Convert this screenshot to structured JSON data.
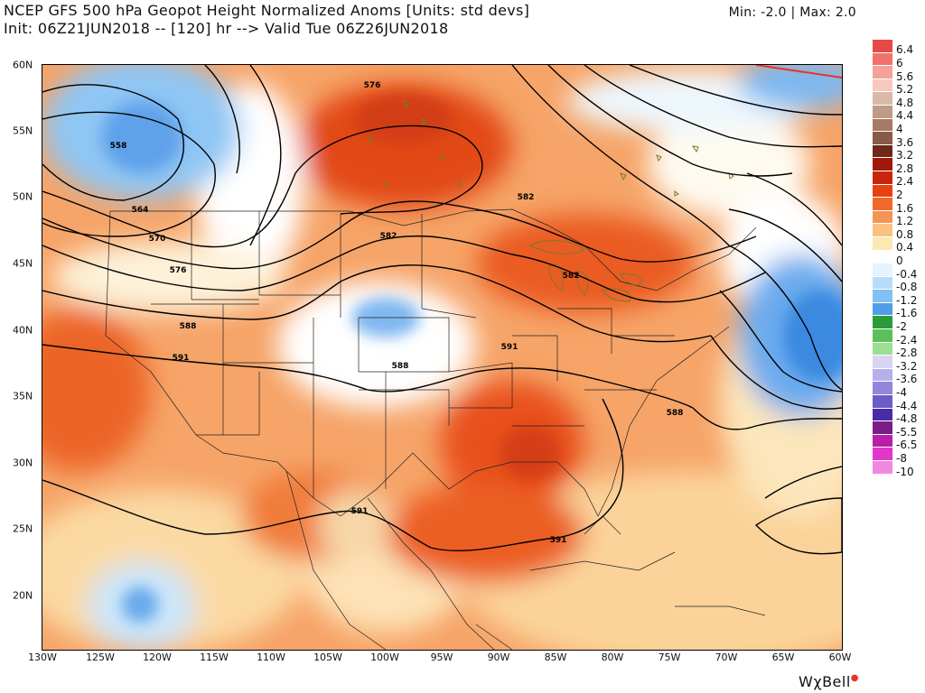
{
  "header": {
    "title": "NCEP GFS 500 hPa Geopot Height Normalized Anoms [Units: std devs]",
    "init_line": "Init: 06Z21JUN2018 -- [120] hr --> Valid Tue 06Z26JUN2018",
    "minmax": "Min: -2.0 | Max: 2.0"
  },
  "axes": {
    "lat_labels": [
      "60N",
      "55N",
      "50N",
      "45N",
      "40N",
      "35N",
      "30N",
      "25N",
      "20N"
    ],
    "lon_labels": [
      "130W",
      "125W",
      "120W",
      "115W",
      "110W",
      "105W",
      "100W",
      "95W",
      "90W",
      "85W",
      "80W",
      "75W",
      "70W",
      "65W",
      "60W"
    ]
  },
  "contour_labels": [
    "576",
    "582",
    "582",
    "558",
    "564",
    "570",
    "576",
    "588",
    "591",
    "591",
    "588",
    "591",
    "591",
    "588",
    "591",
    "582"
  ],
  "colorbar": {
    "levels": [
      "6.4",
      "6",
      "5.6",
      "5.2",
      "4.8",
      "4.4",
      "4",
      "3.6",
      "3.2",
      "2.8",
      "2.4",
      "2",
      "1.6",
      "1.2",
      "0.8",
      "0.4",
      "0",
      "-0.4",
      "-0.8",
      "-1.2",
      "-1.6",
      "-2",
      "-2.4",
      "-2.8",
      "-3.2",
      "-3.6",
      "-4",
      "-4.4",
      "-4.8",
      "-5.5",
      "-6.5",
      "-8",
      "-10"
    ],
    "colors": [
      "#e34a48",
      "#f0726a",
      "#f4a29a",
      "#f6c8c0",
      "#d8b9aa",
      "#bf9a86",
      "#a67a64",
      "#8a5a48",
      "#6e2818",
      "#a0180a",
      "#c8260c",
      "#e8410f",
      "#f2682a",
      "#f69456",
      "#fbc182",
      "#fde7b2",
      "#ffffff",
      "#e6f2fd",
      "#b7dcf9",
      "#82bff2",
      "#4f9ee6",
      "#2b9b3a",
      "#5cc05a",
      "#9adf92",
      "#d8d4f2",
      "#b6b0ea",
      "#9286dc",
      "#6c5cc8",
      "#4a2aa8",
      "#7a1e86",
      "#b81ea8",
      "#e038c8",
      "#f088e0"
    ]
  },
  "brand": {
    "logo_text": "WχBell"
  }
}
